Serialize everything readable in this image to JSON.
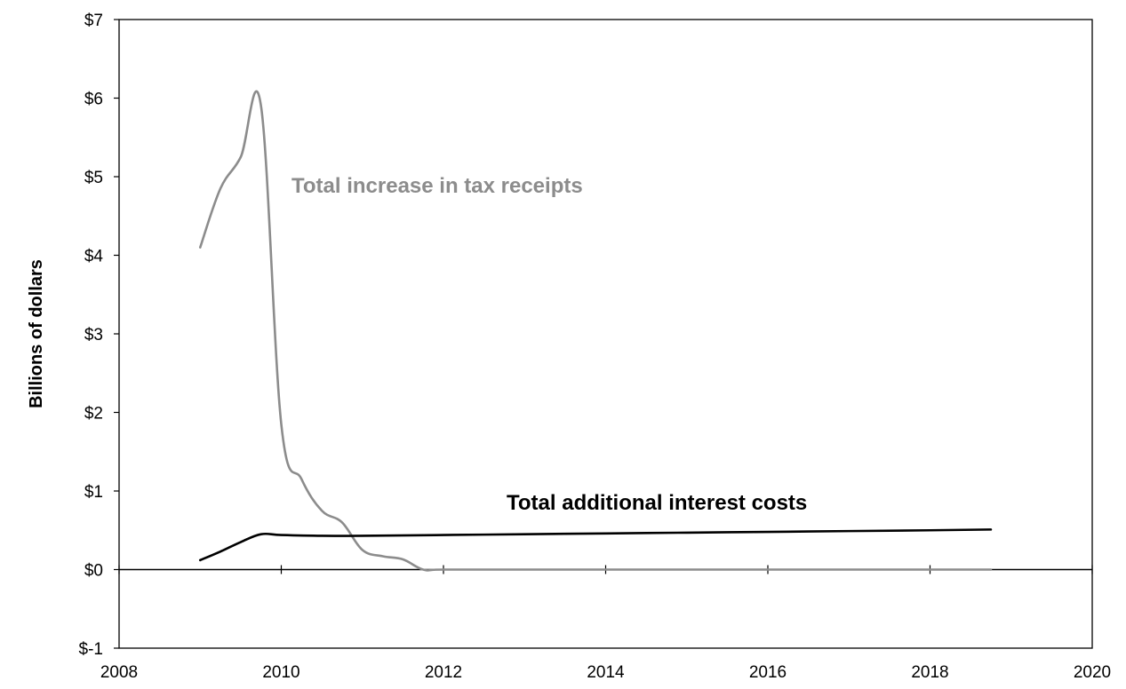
{
  "chart_data": {
    "type": "line",
    "title": "",
    "xlabel": "",
    "ylabel": "Billions of dollars",
    "xlim": [
      2008,
      2020
    ],
    "ylim": [
      -1,
      7
    ],
    "x_ticks": [
      2008,
      2010,
      2012,
      2014,
      2016,
      2018,
      2020
    ],
    "y_ticks": [
      -1,
      0,
      1,
      2,
      3,
      4,
      5,
      6,
      7
    ],
    "y_tick_labels": [
      "$-1",
      "$0",
      "$1",
      "$2",
      "$3",
      "$4",
      "$5",
      "$6",
      "$7"
    ],
    "x_tick_labels": [
      "2008",
      "2010",
      "2012",
      "2014",
      "2016",
      "2018",
      "2020"
    ],
    "grid": false,
    "legend": "none (series labeled inline)",
    "series": [
      {
        "name": "Total increase in tax receipts",
        "color": "#8c8c8c",
        "x": [
          2009.0,
          2009.25,
          2009.5,
          2009.75,
          2010.0,
          2010.25,
          2010.5,
          2010.75,
          2011.0,
          2011.25,
          2011.5,
          2011.75,
          2012.0,
          2013.0,
          2014.0,
          2015.0,
          2016.0,
          2017.0,
          2018.0,
          2018.75
        ],
        "y": [
          4.1,
          4.85,
          5.25,
          5.9,
          1.85,
          1.15,
          0.75,
          0.6,
          0.25,
          0.17,
          0.13,
          0.0,
          0.0,
          0.0,
          0.0,
          0.0,
          0.0,
          0.0,
          0.0,
          0.0
        ]
      },
      {
        "name": "Total additional interest costs",
        "color": "#000000",
        "x": [
          2009.0,
          2009.25,
          2009.5,
          2009.75,
          2010.0,
          2010.5,
          2011.0,
          2012.0,
          2013.0,
          2014.0,
          2015.0,
          2016.0,
          2017.0,
          2018.0,
          2018.75
        ],
        "y": [
          0.12,
          0.23,
          0.35,
          0.45,
          0.44,
          0.43,
          0.43,
          0.44,
          0.45,
          0.46,
          0.47,
          0.48,
          0.49,
          0.5,
          0.51
        ]
      }
    ],
    "annotations": [
      "Total increase in tax receipts",
      "Total additional interest costs"
    ]
  }
}
